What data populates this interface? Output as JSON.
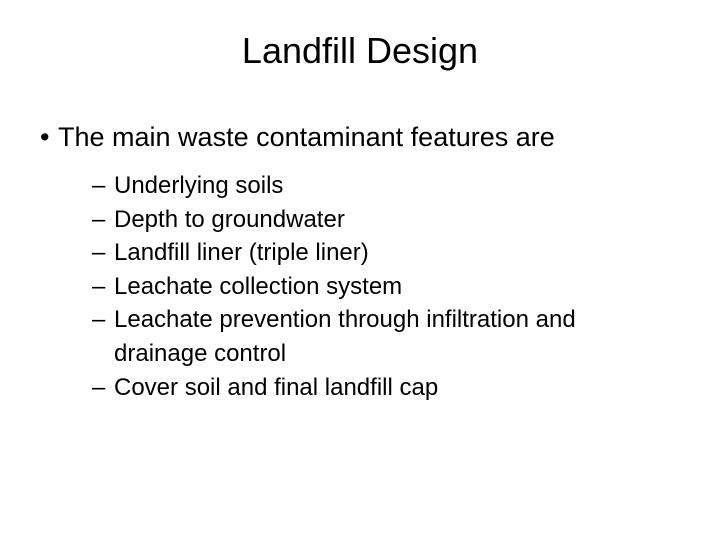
{
  "title": "Landfill Design",
  "main_bullet": "The main waste contaminant features are",
  "sub_items": [
    "Underlying soils",
    "Depth to groundwater",
    "Landfill liner (triple liner)",
    "Leachate collection system",
    "Leachate prevention through infiltration and drainage control",
    "Cover soil and final landfill cap"
  ],
  "colors": {
    "background": "#ffffff",
    "text": "#000000"
  },
  "typography": {
    "title_fontsize": 36,
    "body_fontsize": 27,
    "sub_fontsize": 24,
    "font_family": "Arial"
  }
}
